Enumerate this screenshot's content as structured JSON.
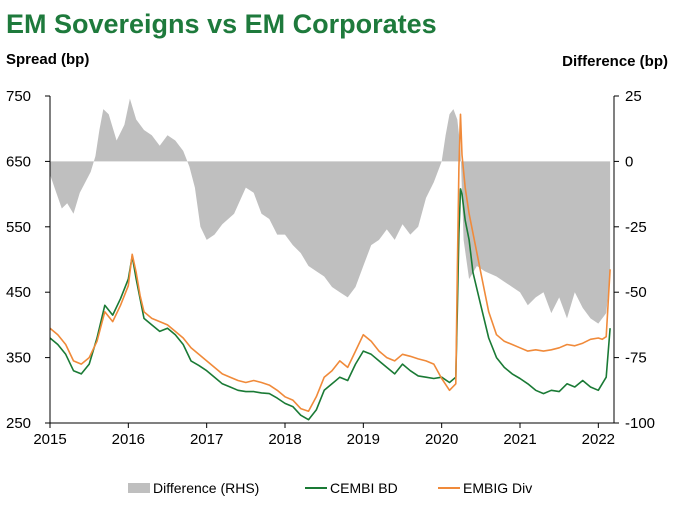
{
  "chart_data": {
    "type": "line",
    "title": "EM Sovereigns vs EM Corporates",
    "ylabel": "Spread (bp)",
    "y2label": "Difference (bp)",
    "xlim": [
      2015,
      2022.2
    ],
    "ylim": [
      250,
      750
    ],
    "y2lim": [
      -100,
      25
    ],
    "x_ticks": [
      "2015",
      "2016",
      "2017",
      "2018",
      "2019",
      "2020",
      "2021",
      "2022"
    ],
    "y_ticks": [
      "750",
      "650",
      "550",
      "450",
      "350",
      "250"
    ],
    "y2_ticks": [
      "25",
      "0",
      "-25",
      "-50",
      "-75",
      "-100"
    ],
    "legend_position": "bottom",
    "colors": {
      "title": "#1E7A3C",
      "difference": "#BFBFBF",
      "cembi": "#1A7A35",
      "embig": "#F08A3A"
    },
    "series": [
      {
        "name": "Difference (RHS)",
        "axis": "right",
        "style": "area",
        "x": [
          2015.0,
          2015.08,
          2015.15,
          2015.22,
          2015.3,
          2015.38,
          2015.45,
          2015.52,
          2015.58,
          2015.63,
          2015.68,
          2015.75,
          2015.85,
          2015.95,
          2016.02,
          2016.1,
          2016.2,
          2016.3,
          2016.4,
          2016.5,
          2016.6,
          2016.7,
          2016.78,
          2016.85,
          2016.92,
          2017.0,
          2017.1,
          2017.2,
          2017.35,
          2017.5,
          2017.6,
          2017.7,
          2017.8,
          2017.9,
          2018.0,
          2018.1,
          2018.2,
          2018.3,
          2018.4,
          2018.5,
          2018.6,
          2018.7,
          2018.8,
          2018.9,
          2019.0,
          2019.1,
          2019.2,
          2019.3,
          2019.4,
          2019.5,
          2019.6,
          2019.7,
          2019.8,
          2019.9,
          2020.0,
          2020.05,
          2020.1,
          2020.15,
          2020.2,
          2020.24,
          2020.28,
          2020.35,
          2020.45,
          2020.55,
          2020.7,
          2020.8,
          2020.9,
          2021.0,
          2021.1,
          2021.2,
          2021.3,
          2021.4,
          2021.5,
          2021.6,
          2021.7,
          2021.8,
          2021.9,
          2022.0,
          2022.1,
          2022.15
        ],
        "y": [
          -5,
          -12,
          -18,
          -16,
          -20,
          -12,
          -8,
          -4,
          2,
          12,
          20,
          18,
          8,
          14,
          24,
          16,
          12,
          10,
          6,
          10,
          8,
          4,
          -2,
          -10,
          -25,
          -30,
          -28,
          -24,
          -20,
          -10,
          -12,
          -20,
          -22,
          -28,
          -28,
          -32,
          -35,
          -40,
          -42,
          -44,
          -48,
          -50,
          -52,
          -48,
          -40,
          -32,
          -30,
          -26,
          -30,
          -24,
          -28,
          -25,
          -14,
          -8,
          0,
          10,
          18,
          20,
          16,
          5,
          -30,
          -45,
          -40,
          -42,
          -44,
          -46,
          -48,
          -50,
          -55,
          -52,
          -50,
          -58,
          -52,
          -60,
          -50,
          -56,
          -60,
          -62,
          -58,
          -44
        ]
      },
      {
        "name": "CEMBI BD",
        "axis": "left",
        "style": "line",
        "x": [
          2015.0,
          2015.1,
          2015.2,
          2015.3,
          2015.4,
          2015.5,
          2015.6,
          2015.7,
          2015.8,
          2015.9,
          2016.0,
          2016.05,
          2016.1,
          2016.15,
          2016.2,
          2016.3,
          2016.4,
          2016.5,
          2016.6,
          2016.7,
          2016.8,
          2016.9,
          2017.0,
          2017.1,
          2017.2,
          2017.3,
          2017.4,
          2017.5,
          2017.6,
          2017.7,
          2017.8,
          2017.9,
          2018.0,
          2018.1,
          2018.2,
          2018.3,
          2018.4,
          2018.5,
          2018.6,
          2018.7,
          2018.8,
          2018.9,
          2019.0,
          2019.1,
          2019.2,
          2019.3,
          2019.4,
          2019.5,
          2019.6,
          2019.7,
          2019.8,
          2019.9,
          2020.0,
          2020.1,
          2020.18,
          2020.2,
          2020.22,
          2020.24,
          2020.26,
          2020.3,
          2020.35,
          2020.4,
          2020.5,
          2020.6,
          2020.7,
          2020.8,
          2020.9,
          2021.0,
          2021.1,
          2021.2,
          2021.3,
          2021.4,
          2021.5,
          2021.6,
          2021.7,
          2021.8,
          2021.9,
          2022.0,
          2022.05,
          2022.1,
          2022.15
        ],
        "y": [
          380,
          370,
          355,
          330,
          325,
          340,
          380,
          430,
          415,
          440,
          470,
          505,
          470,
          440,
          410,
          400,
          390,
          395,
          385,
          370,
          345,
          338,
          330,
          320,
          310,
          305,
          300,
          298,
          298,
          296,
          295,
          288,
          280,
          275,
          262,
          255,
          270,
          300,
          310,
          320,
          315,
          340,
          360,
          355,
          345,
          335,
          325,
          340,
          330,
          322,
          320,
          318,
          320,
          312,
          320,
          420,
          540,
          608,
          600,
          560,
          530,
          480,
          430,
          380,
          350,
          335,
          325,
          318,
          310,
          300,
          295,
          300,
          298,
          310,
          305,
          315,
          305,
          300,
          310,
          320,
          395
        ]
      },
      {
        "name": "EMBIG Div",
        "axis": "left",
        "style": "line",
        "x": [
          2015.0,
          2015.1,
          2015.2,
          2015.3,
          2015.4,
          2015.5,
          2015.6,
          2015.7,
          2015.8,
          2015.9,
          2016.0,
          2016.05,
          2016.1,
          2016.15,
          2016.2,
          2016.3,
          2016.4,
          2016.5,
          2016.6,
          2016.7,
          2016.8,
          2016.9,
          2017.0,
          2017.1,
          2017.2,
          2017.3,
          2017.4,
          2017.5,
          2017.6,
          2017.7,
          2017.8,
          2017.9,
          2018.0,
          2018.1,
          2018.2,
          2018.3,
          2018.4,
          2018.5,
          2018.6,
          2018.7,
          2018.8,
          2018.9,
          2019.0,
          2019.1,
          2019.2,
          2019.3,
          2019.4,
          2019.5,
          2019.6,
          2019.7,
          2019.8,
          2019.9,
          2020.0,
          2020.1,
          2020.18,
          2020.2,
          2020.22,
          2020.24,
          2020.26,
          2020.3,
          2020.35,
          2020.4,
          2020.5,
          2020.6,
          2020.7,
          2020.8,
          2020.9,
          2021.0,
          2021.1,
          2021.2,
          2021.3,
          2021.4,
          2021.5,
          2021.6,
          2021.7,
          2021.8,
          2021.9,
          2022.0,
          2022.05,
          2022.1,
          2022.15
        ],
        "y": [
          395,
          385,
          370,
          345,
          340,
          350,
          375,
          420,
          405,
          430,
          460,
          508,
          480,
          445,
          420,
          410,
          405,
          400,
          390,
          380,
          365,
          355,
          345,
          335,
          325,
          320,
          315,
          312,
          315,
          312,
          308,
          300,
          290,
          285,
          272,
          268,
          290,
          320,
          330,
          345,
          335,
          360,
          385,
          375,
          360,
          350,
          345,
          355,
          352,
          348,
          345,
          340,
          318,
          300,
          310,
          480,
          640,
          722,
          660,
          610,
          570,
          540,
          480,
          420,
          385,
          375,
          370,
          365,
          360,
          362,
          360,
          362,
          365,
          370,
          368,
          372,
          378,
          380,
          378,
          382,
          485
        ]
      }
    ]
  }
}
